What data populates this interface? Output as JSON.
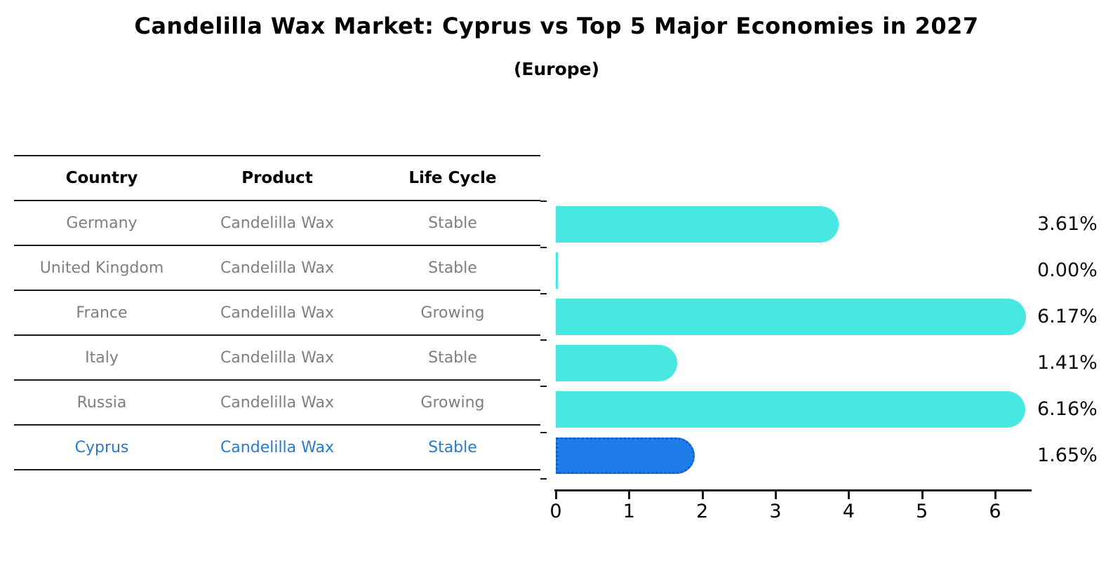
{
  "header": {
    "title": "Candelilla Wax Market: Cyprus vs Top 5 Major Economies in 2027",
    "subtitle": "(Europe)"
  },
  "table": {
    "headers": [
      "Country",
      "Product",
      "Life Cycle"
    ],
    "rows": [
      {
        "country": "Germany",
        "product": "Candelilla Wax",
        "life_cycle": "Stable",
        "highlighted": false
      },
      {
        "country": "United Kingdom",
        "product": "Candelilla Wax",
        "life_cycle": "Stable",
        "highlighted": false
      },
      {
        "country": "France",
        "product": "Candelilla Wax",
        "life_cycle": "Growing",
        "highlighted": false
      },
      {
        "country": "Italy",
        "product": "Candelilla Wax",
        "life_cycle": "Stable",
        "highlighted": false
      },
      {
        "country": "Russia",
        "product": "Candelilla Wax",
        "life_cycle": "Growing",
        "highlighted": false
      },
      {
        "country": "Cyprus",
        "product": "Candelilla Wax",
        "life_cycle": "Stable",
        "highlighted": true
      }
    ]
  },
  "chart_data": {
    "type": "bar",
    "orientation": "horizontal",
    "title": "Candelilla Wax Market: Cyprus vs Top 5 Major Economies in 2027",
    "subtitle": "(Europe)",
    "categories": [
      "Germany",
      "United Kingdom",
      "France",
      "Italy",
      "Russia",
      "Cyprus"
    ],
    "values": [
      3.61,
      0.0,
      6.17,
      1.41,
      6.16,
      1.65
    ],
    "value_labels": [
      "3.61%",
      "0.00%",
      "6.17%",
      "1.41%",
      "6.16%",
      "1.65%"
    ],
    "highlight_index": 5,
    "x_ticks": [
      0,
      1,
      2,
      3,
      4,
      5,
      6
    ],
    "xlim": [
      0,
      6.48
    ],
    "xlabel": "",
    "ylabel": "",
    "grid": false,
    "legend": "none",
    "bar_color": "#48e7e2",
    "highlight_bar_color": "#1e7de9",
    "highlight_border_color": "#1160d2",
    "highlight_text_color": "#2979cf",
    "text_color": "#7f7f7f",
    "value_label_position": "right"
  }
}
